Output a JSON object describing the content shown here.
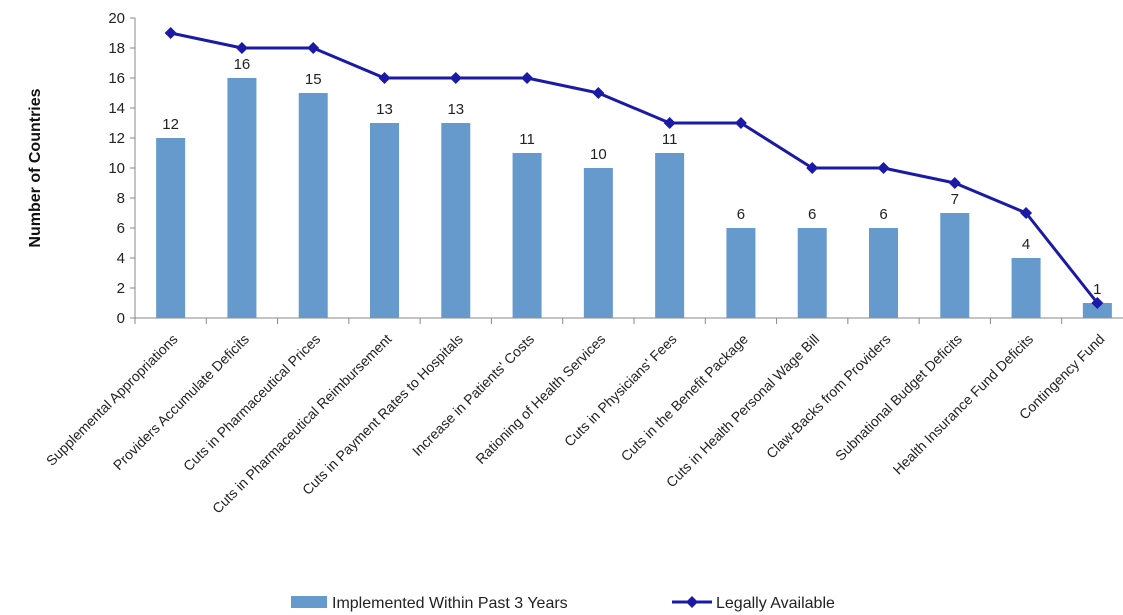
{
  "chart_data": {
    "type": "bar",
    "categories": [
      "Supplemental Appropriations",
      "Providers Accumulate Deficits",
      "Cuts in Pharmaceutical Prices",
      "Cuts in Pharmaceutical Reimbursement",
      "Cuts in Payment Rates to Hospitals",
      "Increase in Patients' Costs",
      "Rationing of Health Services",
      "Cuts in Physicians' Fees",
      "Cuts in the Benefit Package",
      "Cuts in Health Personal Wage Bill",
      "Claw-Backs from Providers",
      "Subnational Budget Deficits",
      "Health Insurance Fund Deficits",
      "Contingency Fund"
    ],
    "series": [
      {
        "name": "Implemented Within Past 3 Years",
        "type": "bar",
        "color": "#6699cc",
        "values": [
          12,
          16,
          15,
          13,
          13,
          11,
          10,
          11,
          6,
          6,
          6,
          7,
          4,
          1
        ]
      },
      {
        "name": "Legally Available",
        "type": "line",
        "marker": "diamond",
        "color": "#1a1aa6",
        "values": [
          19,
          18,
          18,
          16,
          16,
          16,
          15,
          13,
          13,
          10,
          10,
          9,
          7,
          1
        ]
      }
    ],
    "ylabel": "Number of Countries",
    "ylim": [
      0,
      20
    ],
    "yticks": [
      0,
      2,
      4,
      6,
      8,
      10,
      12,
      14,
      16,
      18,
      20
    ],
    "grid": false,
    "legend_position": "bottom"
  }
}
